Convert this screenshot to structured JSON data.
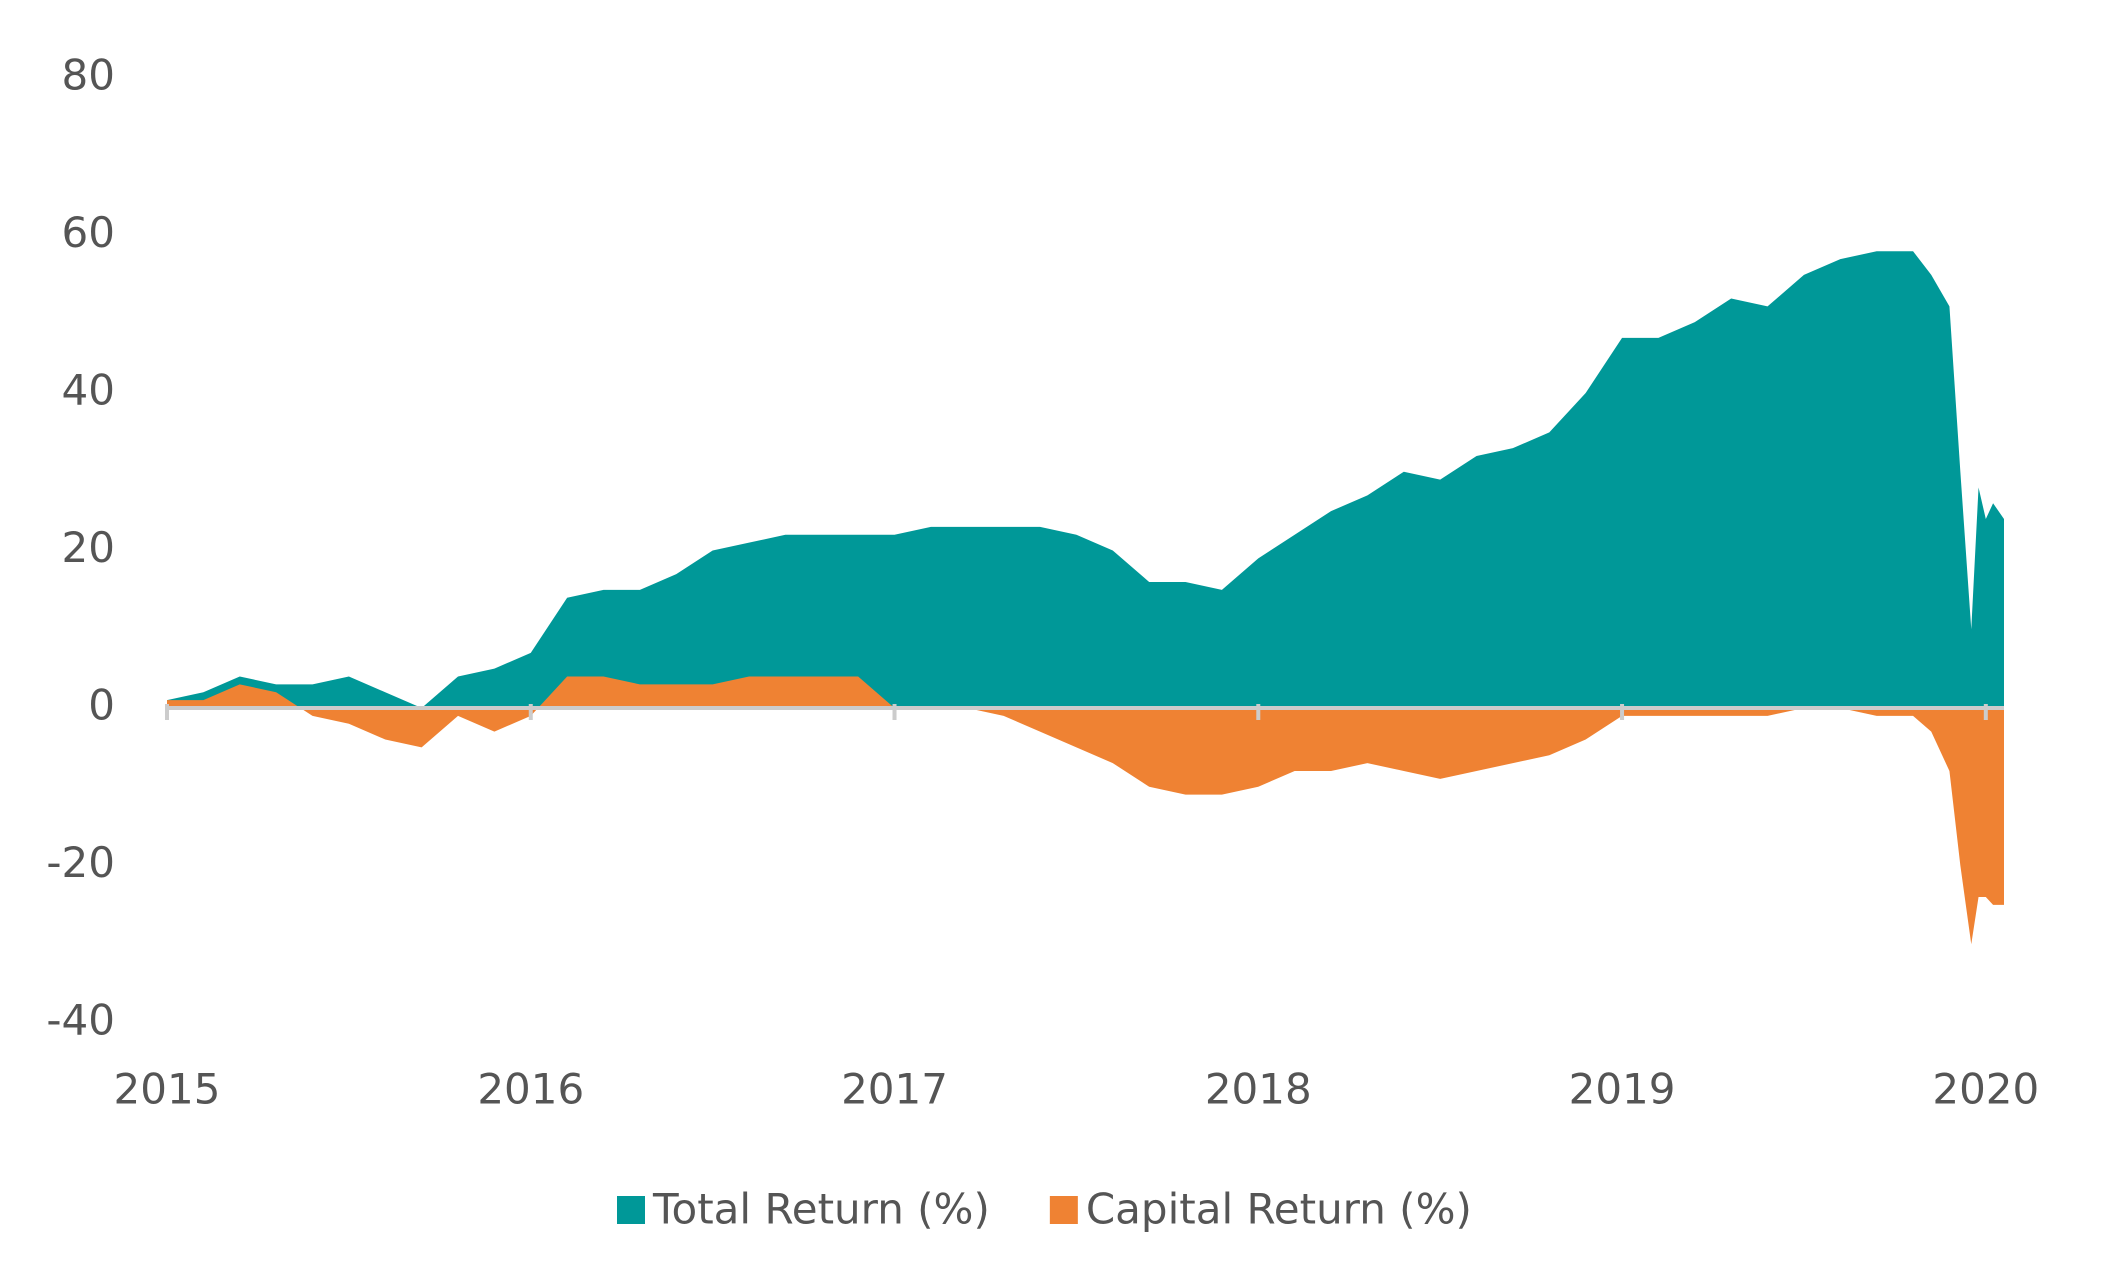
{
  "chart_data": {
    "type": "area",
    "x": [
      2015.0,
      2015.1,
      2015.2,
      2015.3,
      2015.4,
      2015.5,
      2015.6,
      2015.7,
      2015.8,
      2015.9,
      2016.0,
      2016.1,
      2016.2,
      2016.3,
      2016.4,
      2016.5,
      2016.6,
      2016.7,
      2016.8,
      2016.9,
      2017.0,
      2017.1,
      2017.2,
      2017.3,
      2017.4,
      2017.5,
      2017.6,
      2017.7,
      2017.8,
      2017.9,
      2018.0,
      2018.1,
      2018.2,
      2018.3,
      2018.4,
      2018.5,
      2018.6,
      2018.7,
      2018.8,
      2018.9,
      2019.0,
      2019.1,
      2019.2,
      2019.3,
      2019.4,
      2019.5,
      2019.6,
      2019.7,
      2019.8,
      2019.85,
      2019.9,
      2019.93,
      2019.96,
      2019.98,
      2020.0,
      2020.02,
      2020.05
    ],
    "series": [
      {
        "name": "Total Return (%)",
        "color": "#009898",
        "values": [
          1,
          2,
          4,
          3,
          3,
          4,
          2,
          0,
          4,
          5,
          7,
          14,
          15,
          15,
          17,
          20,
          21,
          22,
          22,
          22,
          22,
          23,
          23,
          23,
          23,
          22,
          20,
          16,
          16,
          15,
          19,
          22,
          25,
          27,
          30,
          29,
          32,
          33,
          35,
          40,
          47,
          47,
          49,
          52,
          51,
          55,
          57,
          58,
          58,
          55,
          51,
          30,
          10,
          28,
          24,
          26,
          24
        ]
      },
      {
        "name": "Capital Return (%)",
        "color": "#ef8233",
        "values": [
          1,
          1,
          3,
          2,
          -1,
          -2,
          -4,
          -5,
          -1,
          -3,
          -1,
          4,
          4,
          3,
          3,
          3,
          4,
          4,
          4,
          4,
          0,
          0,
          0,
          -1,
          -3,
          -5,
          -7,
          -10,
          -11,
          -11,
          -10,
          -8,
          -8,
          -7,
          -8,
          -9,
          -8,
          -7,
          -6,
          -4,
          -1,
          -1,
          -1,
          -1,
          -1,
          0,
          0,
          -1,
          -1,
          -3,
          -8,
          -20,
          -30,
          -24,
          -24,
          -25,
          -25
        ]
      }
    ],
    "xlim": [
      2015,
      2020.05
    ],
    "xticks": [
      2015,
      2016,
      2017,
      2018,
      2019,
      2020
    ],
    "ylim": [
      -40,
      80
    ],
    "yticks": [
      -40,
      -20,
      0,
      20,
      40,
      60,
      80
    ]
  }
}
